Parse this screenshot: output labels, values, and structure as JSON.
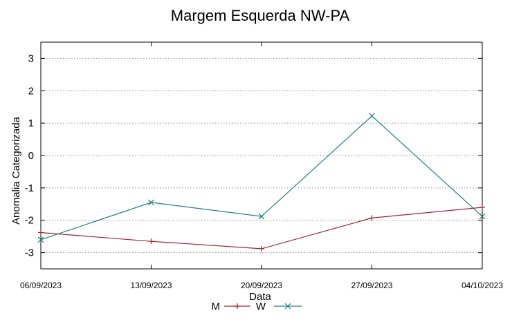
{
  "chart_data": {
    "type": "line",
    "title": "Margem Esquerda NW-PA",
    "xlabel": "Data",
    "ylabel": "Anomalia Categorizada",
    "categories": [
      "06/09/2023",
      "13/09/2023",
      "20/09/2023",
      "27/09/2023",
      "04/10/2023"
    ],
    "ylim": [
      -3.5,
      3.5
    ],
    "yticks": [
      3,
      2,
      1,
      0,
      -1,
      -2,
      -3
    ],
    "grid": "horizontal-dotted",
    "legend_position": "bottom-center",
    "series": [
      {
        "name": "M",
        "color": "#a0242e",
        "marker": "plus",
        "values": [
          -2.38,
          -2.65,
          -2.88,
          -1.93,
          -1.6
        ]
      },
      {
        "name": "W",
        "color": "#1f7f80",
        "marker": "cross",
        "values": [
          -2.6,
          -1.45,
          -1.88,
          1.22,
          -1.88
        ]
      }
    ]
  }
}
